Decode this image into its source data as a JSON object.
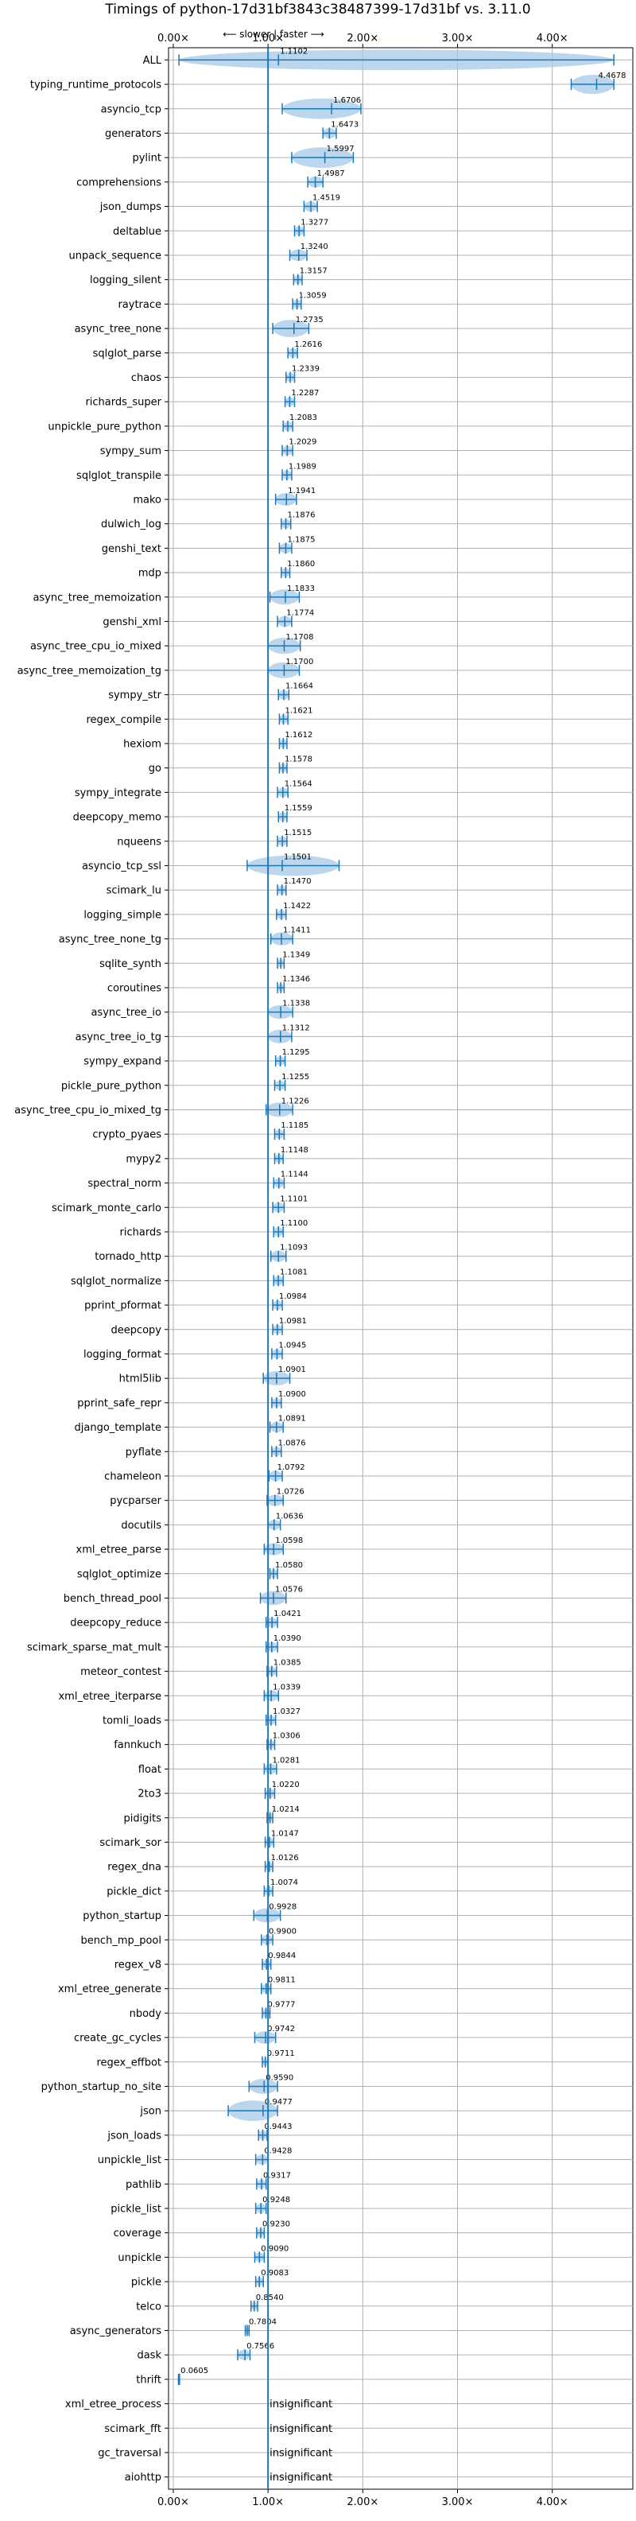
{
  "chart_data": {
    "type": "violin",
    "title": "Timings of python-17d31bf3843c38487399-17d31bf vs. 3.11.0",
    "subtitle": "⟵ slower | faster ⟶",
    "xlim": [
      -0.05,
      4.85
    ],
    "xticks": [
      0,
      1,
      2,
      3,
      4
    ],
    "xtick_labels": [
      "0.00×",
      "1.00×",
      "2.00×",
      "3.00×",
      "4.00×"
    ],
    "reference_line": 1.0,
    "grid": true,
    "insignificant_label": "insignificant",
    "benchmarks": [
      {
        "name": "ALL",
        "value": 1.1102,
        "min": 0.06,
        "max": 4.65
      },
      {
        "name": "typing_runtime_protocols",
        "value": 4.4678,
        "min": 4.2,
        "max": 4.65
      },
      {
        "name": "asyncio_tcp",
        "value": 1.6706,
        "min": 1.15,
        "max": 1.98
      },
      {
        "name": "generators",
        "value": 1.6473,
        "min": 1.58,
        "max": 1.72
      },
      {
        "name": "pylint",
        "value": 1.5997,
        "min": 1.25,
        "max": 1.9
      },
      {
        "name": "comprehensions",
        "value": 1.4987,
        "min": 1.42,
        "max": 1.58
      },
      {
        "name": "json_dumps",
        "value": 1.4519,
        "min": 1.38,
        "max": 1.52
      },
      {
        "name": "deltablue",
        "value": 1.3277,
        "min": 1.28,
        "max": 1.38
      },
      {
        "name": "unpack_sequence",
        "value": 1.324,
        "min": 1.23,
        "max": 1.41
      },
      {
        "name": "logging_silent",
        "value": 1.3157,
        "min": 1.27,
        "max": 1.36
      },
      {
        "name": "raytrace",
        "value": 1.3059,
        "min": 1.26,
        "max": 1.35
      },
      {
        "name": "async_tree_none",
        "value": 1.2735,
        "min": 1.05,
        "max": 1.43
      },
      {
        "name": "sqlglot_parse",
        "value": 1.2616,
        "min": 1.21,
        "max": 1.31
      },
      {
        "name": "chaos",
        "value": 1.2339,
        "min": 1.19,
        "max": 1.28
      },
      {
        "name": "richards_super",
        "value": 1.2287,
        "min": 1.18,
        "max": 1.28
      },
      {
        "name": "unpickle_pure_python",
        "value": 1.2083,
        "min": 1.16,
        "max": 1.26
      },
      {
        "name": "sympy_sum",
        "value": 1.2029,
        "min": 1.15,
        "max": 1.26
      },
      {
        "name": "sqlglot_transpile",
        "value": 1.1989,
        "min": 1.15,
        "max": 1.25
      },
      {
        "name": "mako",
        "value": 1.1941,
        "min": 1.08,
        "max": 1.3
      },
      {
        "name": "dulwich_log",
        "value": 1.1876,
        "min": 1.14,
        "max": 1.24
      },
      {
        "name": "genshi_text",
        "value": 1.1875,
        "min": 1.12,
        "max": 1.25
      },
      {
        "name": "mdp",
        "value": 1.186,
        "min": 1.14,
        "max": 1.23
      },
      {
        "name": "async_tree_memoization",
        "value": 1.1833,
        "min": 1.02,
        "max": 1.33
      },
      {
        "name": "genshi_xml",
        "value": 1.1774,
        "min": 1.1,
        "max": 1.25
      },
      {
        "name": "async_tree_cpu_io_mixed",
        "value": 1.1708,
        "min": 1.0,
        "max": 1.34
      },
      {
        "name": "async_tree_memoization_tg",
        "value": 1.17,
        "min": 1.0,
        "max": 1.33
      },
      {
        "name": "sympy_str",
        "value": 1.1664,
        "min": 1.11,
        "max": 1.22
      },
      {
        "name": "regex_compile",
        "value": 1.1621,
        "min": 1.12,
        "max": 1.21
      },
      {
        "name": "hexiom",
        "value": 1.1612,
        "min": 1.12,
        "max": 1.2
      },
      {
        "name": "go",
        "value": 1.1578,
        "min": 1.12,
        "max": 1.2
      },
      {
        "name": "sympy_integrate",
        "value": 1.1564,
        "min": 1.1,
        "max": 1.21
      },
      {
        "name": "deepcopy_memo",
        "value": 1.1559,
        "min": 1.11,
        "max": 1.2
      },
      {
        "name": "nqueens",
        "value": 1.1515,
        "min": 1.1,
        "max": 1.2
      },
      {
        "name": "asyncio_tcp_ssl",
        "value": 1.1501,
        "min": 0.78,
        "max": 1.75
      },
      {
        "name": "scimark_lu",
        "value": 1.147,
        "min": 1.1,
        "max": 1.19
      },
      {
        "name": "logging_simple",
        "value": 1.1422,
        "min": 1.09,
        "max": 1.19
      },
      {
        "name": "async_tree_none_tg",
        "value": 1.1411,
        "min": 1.03,
        "max": 1.26
      },
      {
        "name": "sqlite_synth",
        "value": 1.1349,
        "min": 1.1,
        "max": 1.17
      },
      {
        "name": "coroutines",
        "value": 1.1346,
        "min": 1.1,
        "max": 1.17
      },
      {
        "name": "async_tree_io",
        "value": 1.1338,
        "min": 1.0,
        "max": 1.26
      },
      {
        "name": "async_tree_io_tg",
        "value": 1.1312,
        "min": 1.0,
        "max": 1.25
      },
      {
        "name": "sympy_expand",
        "value": 1.1295,
        "min": 1.08,
        "max": 1.18
      },
      {
        "name": "pickle_pure_python",
        "value": 1.1255,
        "min": 1.07,
        "max": 1.18
      },
      {
        "name": "async_tree_cpu_io_mixed_tg",
        "value": 1.1226,
        "min": 0.98,
        "max": 1.26
      },
      {
        "name": "crypto_pyaes",
        "value": 1.1185,
        "min": 1.07,
        "max": 1.17
      },
      {
        "name": "mypy2",
        "value": 1.1148,
        "min": 1.07,
        "max": 1.16
      },
      {
        "name": "spectral_norm",
        "value": 1.1144,
        "min": 1.06,
        "max": 1.17
      },
      {
        "name": "scimark_monte_carlo",
        "value": 1.1101,
        "min": 1.05,
        "max": 1.17
      },
      {
        "name": "richards",
        "value": 1.11,
        "min": 1.06,
        "max": 1.16
      },
      {
        "name": "tornado_http",
        "value": 1.1093,
        "min": 1.03,
        "max": 1.19
      },
      {
        "name": "sqlglot_normalize",
        "value": 1.1081,
        "min": 1.06,
        "max": 1.16
      },
      {
        "name": "pprint_pformat",
        "value": 1.0984,
        "min": 1.05,
        "max": 1.15
      },
      {
        "name": "deepcopy",
        "value": 1.0981,
        "min": 1.05,
        "max": 1.15
      },
      {
        "name": "logging_format",
        "value": 1.0945,
        "min": 1.04,
        "max": 1.15
      },
      {
        "name": "html5lib",
        "value": 1.0901,
        "min": 0.95,
        "max": 1.23
      },
      {
        "name": "pprint_safe_repr",
        "value": 1.09,
        "min": 1.04,
        "max": 1.14
      },
      {
        "name": "django_template",
        "value": 1.0891,
        "min": 1.02,
        "max": 1.16
      },
      {
        "name": "pyflate",
        "value": 1.0876,
        "min": 1.04,
        "max": 1.14
      },
      {
        "name": "chameleon",
        "value": 1.0792,
        "min": 1.01,
        "max": 1.15
      },
      {
        "name": "pycparser",
        "value": 1.0726,
        "min": 0.99,
        "max": 1.16
      },
      {
        "name": "docutils",
        "value": 1.0636,
        "min": 1.0,
        "max": 1.13
      },
      {
        "name": "xml_etree_parse",
        "value": 1.0598,
        "min": 0.96,
        "max": 1.16
      },
      {
        "name": "sqlglot_optimize",
        "value": 1.058,
        "min": 1.02,
        "max": 1.1
      },
      {
        "name": "bench_thread_pool",
        "value": 1.0576,
        "min": 0.92,
        "max": 1.19
      },
      {
        "name": "deepcopy_reduce",
        "value": 1.0421,
        "min": 0.98,
        "max": 1.1
      },
      {
        "name": "scimark_sparse_mat_mult",
        "value": 1.039,
        "min": 0.98,
        "max": 1.1
      },
      {
        "name": "meteor_contest",
        "value": 1.0385,
        "min": 0.99,
        "max": 1.09
      },
      {
        "name": "xml_etree_iterparse",
        "value": 1.0339,
        "min": 0.96,
        "max": 1.11
      },
      {
        "name": "tomli_loads",
        "value": 1.0327,
        "min": 0.98,
        "max": 1.08
      },
      {
        "name": "fannkuch",
        "value": 1.0306,
        "min": 0.99,
        "max": 1.07
      },
      {
        "name": "float",
        "value": 1.0281,
        "min": 0.96,
        "max": 1.09
      },
      {
        "name": "2to3",
        "value": 1.022,
        "min": 0.97,
        "max": 1.07
      },
      {
        "name": "pidigits",
        "value": 1.0214,
        "min": 0.99,
        "max": 1.05
      },
      {
        "name": "scimark_sor",
        "value": 1.0147,
        "min": 0.97,
        "max": 1.06
      },
      {
        "name": "regex_dna",
        "value": 1.0126,
        "min": 0.97,
        "max": 1.05
      },
      {
        "name": "pickle_dict",
        "value": 1.0074,
        "min": 0.96,
        "max": 1.05
      },
      {
        "name": "python_startup",
        "value": 0.9928,
        "min": 0.85,
        "max": 1.13
      },
      {
        "name": "bench_mp_pool",
        "value": 0.99,
        "min": 0.93,
        "max": 1.05
      },
      {
        "name": "regex_v8",
        "value": 0.9844,
        "min": 0.94,
        "max": 1.03
      },
      {
        "name": "xml_etree_generate",
        "value": 0.9811,
        "min": 0.93,
        "max": 1.03
      },
      {
        "name": "nbody",
        "value": 0.9777,
        "min": 0.94,
        "max": 1.02
      },
      {
        "name": "create_gc_cycles",
        "value": 0.9742,
        "min": 0.86,
        "max": 1.08
      },
      {
        "name": "regex_effbot",
        "value": 0.9711,
        "min": 0.94,
        "max": 1.0
      },
      {
        "name": "python_startup_no_site",
        "value": 0.959,
        "min": 0.8,
        "max": 1.1
      },
      {
        "name": "json",
        "value": 0.9477,
        "min": 0.58,
        "max": 1.1
      },
      {
        "name": "json_loads",
        "value": 0.9443,
        "min": 0.9,
        "max": 0.99
      },
      {
        "name": "unpickle_list",
        "value": 0.9428,
        "min": 0.87,
        "max": 1.0
      },
      {
        "name": "pathlib",
        "value": 0.9317,
        "min": 0.88,
        "max": 0.98
      },
      {
        "name": "pickle_list",
        "value": 0.9248,
        "min": 0.87,
        "max": 0.98
      },
      {
        "name": "coverage",
        "value": 0.923,
        "min": 0.88,
        "max": 0.96
      },
      {
        "name": "unpickle",
        "value": 0.909,
        "min": 0.86,
        "max": 0.96
      },
      {
        "name": "pickle",
        "value": 0.9083,
        "min": 0.87,
        "max": 0.95
      },
      {
        "name": "telco",
        "value": 0.854,
        "min": 0.82,
        "max": 0.89
      },
      {
        "name": "async_generators",
        "value": 0.7804,
        "min": 0.76,
        "max": 0.8
      },
      {
        "name": "dask",
        "value": 0.7566,
        "min": 0.68,
        "max": 0.81
      },
      {
        "name": "thrift",
        "value": 0.0605,
        "min": 0.055,
        "max": 0.066
      },
      {
        "name": "xml_etree_process",
        "value": null
      },
      {
        "name": "scimark_fft",
        "value": null
      },
      {
        "name": "gc_traversal",
        "value": null
      },
      {
        "name": "aiohttp",
        "value": null
      }
    ]
  }
}
